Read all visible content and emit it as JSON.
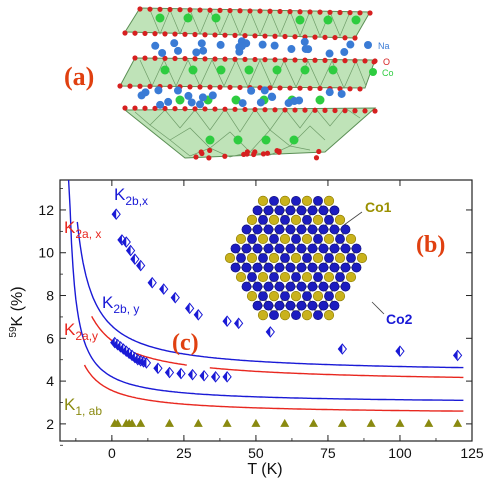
{
  "panel_a": {
    "label": "(a)",
    "legend": [
      {
        "text": "Na",
        "color": "#3a7bd5"
      },
      {
        "text": "O",
        "color": "#d62020"
      },
      {
        "text": "Co",
        "color": "#2ecc40"
      }
    ]
  },
  "panel_b": {
    "label": "(b)",
    "co1_label": "Co1",
    "co2_label": "Co2"
  },
  "panel_c_label": "(c)",
  "colors": {
    "blue": "#1a1ad6",
    "red": "#e8271f",
    "olive": "#8a8a10",
    "panel_label": "#e04010"
  },
  "chart_data": {
    "type": "scatter",
    "xlabel": "T (K)",
    "ylabel": "59K (%)",
    "xlim": [
      -18,
      125
    ],
    "ylim": [
      1.2,
      13.4
    ],
    "x_ticks": [
      "0",
      "25",
      "50",
      "75",
      "100",
      "125"
    ],
    "y_ticks": [
      "2",
      "4",
      "6",
      "8",
      "10",
      "12"
    ],
    "series": [
      {
        "name": "K2b,x",
        "label_main": "K",
        "label_sub": "2b,x",
        "color": "#1a1ad6",
        "marker": "diamond",
        "points": [
          [
            1.5,
            11.8
          ],
          [
            3.5,
            10.6
          ],
          [
            5,
            10.5
          ],
          [
            6.5,
            10.1
          ],
          [
            8,
            9.7
          ],
          [
            10,
            9.4
          ],
          [
            14,
            8.6
          ],
          [
            18,
            8.3
          ],
          [
            22,
            7.9
          ],
          [
            27,
            7.4
          ],
          [
            30,
            7.1
          ],
          [
            40,
            6.8
          ],
          [
            44,
            6.7
          ],
          [
            55,
            6.3
          ],
          [
            80,
            5.5
          ],
          [
            100,
            5.4
          ],
          [
            120,
            5.2
          ]
        ],
        "fit": {
          "A": 39,
          "T0": 17.5,
          "B": 4.35,
          "from": -12,
          "to": 122
        }
      },
      {
        "name": "K2b,y",
        "label_main": "K",
        "label_sub": "2b, y",
        "color": "#1a1ad6",
        "marker": "diamond",
        "points": [
          [
            1,
            5.8
          ],
          [
            2,
            5.7
          ],
          [
            3,
            5.6
          ],
          [
            4,
            5.5
          ],
          [
            5,
            5.4
          ],
          [
            6,
            5.3
          ],
          [
            7,
            5.2
          ],
          [
            8,
            5.1
          ],
          [
            9,
            5.0
          ],
          [
            10,
            4.95
          ],
          [
            11,
            4.9
          ],
          [
            12,
            4.85
          ],
          [
            16,
            4.6
          ],
          [
            20,
            4.4
          ],
          [
            24,
            4.35
          ],
          [
            28,
            4.3
          ],
          [
            32,
            4.25
          ],
          [
            36,
            4.2
          ],
          [
            40,
            4.2
          ]
        ],
        "fit": {
          "A": 21,
          "T0": 16.8,
          "B": 2.95,
          "from": -15,
          "to": 122
        }
      },
      {
        "name": "K2a,x",
        "label_main": "K",
        "label_sub": "2a, x",
        "color": "#e8271f",
        "marker": "none",
        "fit": {
          "A": 38.5,
          "T0": 19.3,
          "B": 3.9,
          "from": -7,
          "to": 122
        },
        "gap": [
          26,
          34
        ]
      },
      {
        "name": "K2a,y",
        "label_main": "K",
        "label_sub": "2a,y",
        "color": "#e8271f",
        "marker": "none",
        "fit": {
          "A": 20.5,
          "T0": 18.4,
          "B": 2.45,
          "from": -9.5,
          "to": 122
        }
      },
      {
        "name": "K1,ab",
        "label_main": "K",
        "label_sub": "1, ab",
        "color": "#8a8a10",
        "marker": "triangle",
        "points": [
          [
            1,
            2
          ],
          [
            2,
            2
          ],
          [
            5,
            2
          ],
          [
            6,
            2
          ],
          [
            7,
            2
          ],
          [
            10,
            2
          ],
          [
            20,
            2
          ],
          [
            30,
            2
          ],
          [
            40,
            2
          ],
          [
            50,
            2
          ],
          [
            60,
            2
          ],
          [
            70,
            2
          ],
          [
            80,
            2
          ],
          [
            90,
            2
          ],
          [
            100,
            2
          ],
          [
            110,
            2
          ],
          [
            120,
            2
          ]
        ]
      }
    ]
  }
}
